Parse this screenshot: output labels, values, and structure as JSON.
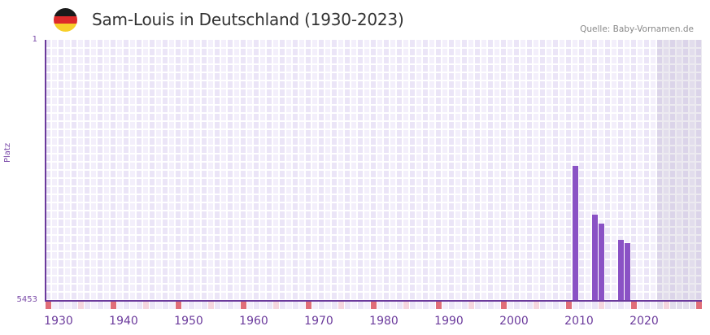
{
  "header": {
    "title": "Sam-Louis in Deutschland (1930-2023)",
    "source": "Quelle: Baby-Vornamen.de",
    "flag_colors": [
      "#1a1a1a",
      "#dd2a2a",
      "#f7cf2a"
    ]
  },
  "colors": {
    "bar": "#8a52c5",
    "axis": "#6b3a9c",
    "grid_light": "#f3effb",
    "grid_dark": "#ebe5f7",
    "marker_red": "#e06d78",
    "marker_pink": "#f5d5de",
    "future_shade": "#e2ddec"
  },
  "chart_data": {
    "type": "bar",
    "title": "Sam-Louis in Deutschland (1930-2023)",
    "xlabel": "",
    "ylabel": "Platz",
    "y_axis_inverted": true,
    "ylim": [
      5453,
      1
    ],
    "y_ticks": [
      "1",
      "5453"
    ],
    "x_ticks": [
      "1930",
      "1940",
      "1950",
      "1960",
      "1970",
      "1980",
      "1990",
      "2000",
      "2010",
      "2020"
    ],
    "x_range": [
      1928,
      2028
    ],
    "grid": true,
    "legend": null,
    "categories": [
      "2009",
      "2012",
      "2013",
      "2016",
      "2017"
    ],
    "values": [
      2633,
      3652,
      3839,
      4179,
      4247
    ],
    "note": "Values are rank (Platz); lower is more popular. Shaded region from 2022 onward."
  },
  "labels": {
    "y_top": "1",
    "y_bottom": "5453",
    "y_title": "Platz",
    "x": [
      "1930",
      "1940",
      "1950",
      "1960",
      "1970",
      "1980",
      "1990",
      "2000",
      "2010",
      "2020"
    ]
  }
}
